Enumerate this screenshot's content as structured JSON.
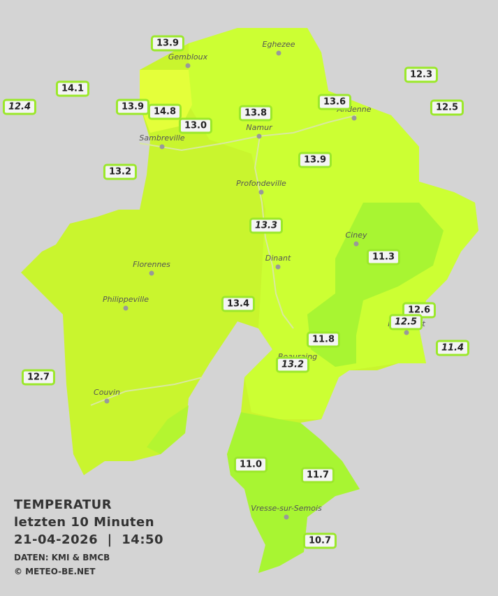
{
  "legend": {
    "title": "TEMPERATUR",
    "period": "letzten 10 Minuten",
    "datetime": "21-04-2026  |  14:50",
    "source": "DATEN: KMI & BMCB",
    "copyright": "© METEO-BE.NET"
  },
  "places": [
    "Eghezee",
    "Gembloux",
    "Andenne",
    "Namur",
    "Sambreville",
    "Profondeville",
    "Ciney",
    "Dinant",
    "Florennes",
    "Philippeville",
    "Rochefort",
    "Beauraing",
    "Couvin",
    "Vresse-sur-Semois"
  ],
  "stations": [
    "13.9",
    "14.1",
    "12.4",
    "13.9",
    "14.8",
    "13.0",
    "13.8",
    "13.6",
    "12.3",
    "12.5",
    "13.9",
    "13.2",
    "13.3",
    "11.3",
    "13.4",
    "12.6",
    "12.5",
    "11.8",
    "13.2",
    "11.4",
    "12.7",
    "11.0",
    "11.7",
    "10.7"
  ]
}
